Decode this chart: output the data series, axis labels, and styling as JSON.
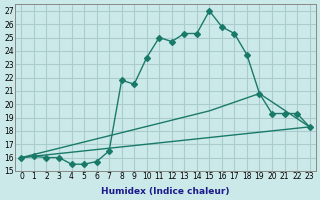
{
  "xlabel": "Humidex (Indice chaleur)",
  "ylabel": "",
  "bg_color": "#cce9e9",
  "line_color": "#1a7a6a",
  "grid_color": "#aacccc",
  "xlim": [
    -0.5,
    23.5
  ],
  "ylim": [
    15,
    27.5
  ],
  "yticks": [
    15,
    16,
    17,
    18,
    19,
    20,
    21,
    22,
    23,
    24,
    25,
    26,
    27
  ],
  "xticks": [
    0,
    1,
    2,
    3,
    4,
    5,
    6,
    7,
    8,
    9,
    10,
    11,
    12,
    13,
    14,
    15,
    16,
    17,
    18,
    19,
    20,
    21,
    22,
    23
  ],
  "series": [
    {
      "x": [
        0,
        1,
        2,
        3,
        4,
        5,
        6,
        7,
        8,
        9,
        10,
        11,
        12,
        13,
        14,
        15,
        16,
        17,
        18,
        19,
        20,
        21,
        22,
        23
      ],
      "y": [
        16,
        16.1,
        16,
        16,
        15.5,
        15.5,
        15.7,
        16.5,
        21.8,
        21.5,
        23.5,
        25.0,
        24.7,
        25.3,
        25.3,
        27.0,
        25.8,
        25.3,
        23.7,
        20.8,
        19.3,
        19.3,
        19.3,
        18.3
      ],
      "marker": true
    },
    {
      "x": [
        0,
        23
      ],
      "y": [
        16,
        18.3
      ],
      "marker": false
    },
    {
      "x": [
        0,
        15,
        19,
        23
      ],
      "y": [
        16,
        19.5,
        20.8,
        18.3
      ],
      "marker": false
    }
  ]
}
